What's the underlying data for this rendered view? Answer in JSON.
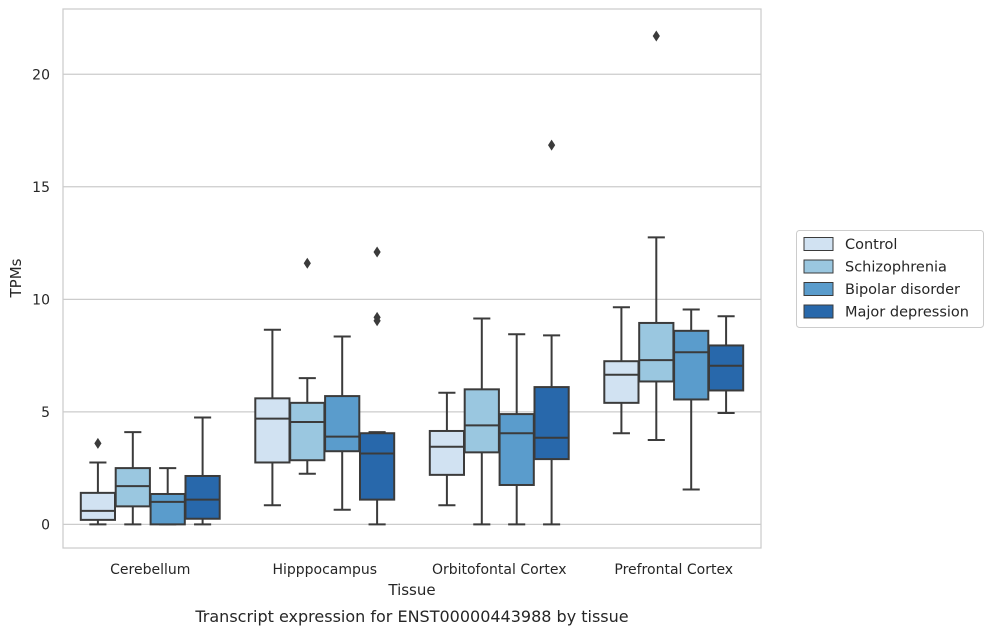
{
  "chart_data": {
    "type": "box",
    "caption": "Transcript expression for ENST00000443988 by tissue",
    "xlabel": "Tissue",
    "ylabel": "TPMs",
    "ylim": [
      -1.05,
      22.9
    ],
    "yticks": [
      0,
      5,
      10,
      15,
      20
    ],
    "grid": "horizontal",
    "legend_position": "right",
    "categories": [
      "Cerebellum",
      "Hipppocampus",
      "Orbitofontal Cortex",
      "Prefrontal Cortex"
    ],
    "series": [
      {
        "name": "Control",
        "color": "#d1e2f2",
        "boxes": [
          {
            "whislo": 0.0,
            "q1": 0.2,
            "med": 0.6,
            "q3": 1.4,
            "whishi": 2.75,
            "fliers": [
              3.6
            ]
          },
          {
            "whislo": 0.85,
            "q1": 2.75,
            "med": 4.7,
            "q3": 5.6,
            "whishi": 8.65,
            "fliers": []
          },
          {
            "whislo": 0.85,
            "q1": 2.2,
            "med": 3.45,
            "q3": 4.15,
            "whishi": 5.85,
            "fliers": []
          },
          {
            "whislo": 4.05,
            "q1": 5.4,
            "med": 6.65,
            "q3": 7.25,
            "whishi": 9.65,
            "fliers": []
          }
        ]
      },
      {
        "name": "Schizophrenia",
        "color": "#9ac7e0",
        "boxes": [
          {
            "whislo": 0.0,
            "q1": 0.8,
            "med": 1.7,
            "q3": 2.5,
            "whishi": 4.1,
            "fliers": []
          },
          {
            "whislo": 2.25,
            "q1": 2.85,
            "med": 4.55,
            "q3": 5.4,
            "whishi": 6.5,
            "fliers": [
              11.6
            ]
          },
          {
            "whislo": 0.0,
            "q1": 3.2,
            "med": 4.4,
            "q3": 6.0,
            "whishi": 9.15,
            "fliers": []
          },
          {
            "whislo": 3.75,
            "q1": 6.35,
            "med": 7.3,
            "q3": 8.95,
            "whishi": 12.75,
            "fliers": [
              21.7
            ]
          }
        ]
      },
      {
        "name": "Bipolar disorder",
        "color": "#5a9ccc",
        "boxes": [
          {
            "whislo": 0.0,
            "q1": 0.0,
            "med": 1.0,
            "q3": 1.35,
            "whishi": 2.5,
            "fliers": []
          },
          {
            "whislo": 0.65,
            "q1": 3.25,
            "med": 3.9,
            "q3": 5.7,
            "whishi": 8.35,
            "fliers": []
          },
          {
            "whislo": 0.0,
            "q1": 1.75,
            "med": 4.05,
            "q3": 4.9,
            "whishi": 8.45,
            "fliers": []
          },
          {
            "whislo": 1.55,
            "q1": 5.55,
            "med": 7.65,
            "q3": 8.6,
            "whishi": 9.55,
            "fliers": []
          }
        ]
      },
      {
        "name": "Major depression",
        "color": "#2868ab",
        "boxes": [
          {
            "whislo": 0.0,
            "q1": 0.25,
            "med": 1.1,
            "q3": 2.15,
            "whishi": 4.75,
            "fliers": []
          },
          {
            "whislo": 0.0,
            "q1": 1.1,
            "med": 3.15,
            "q3": 4.05,
            "whishi": 4.1,
            "fliers": [
              9.05,
              9.2,
              12.1
            ]
          },
          {
            "whislo": 0.0,
            "q1": 2.9,
            "med": 3.85,
            "q3": 6.1,
            "whishi": 8.4,
            "fliers": [
              16.85
            ]
          },
          {
            "whislo": 4.95,
            "q1": 5.95,
            "med": 7.05,
            "q3": 7.95,
            "whishi": 9.25,
            "fliers": []
          }
        ]
      }
    ]
  }
}
